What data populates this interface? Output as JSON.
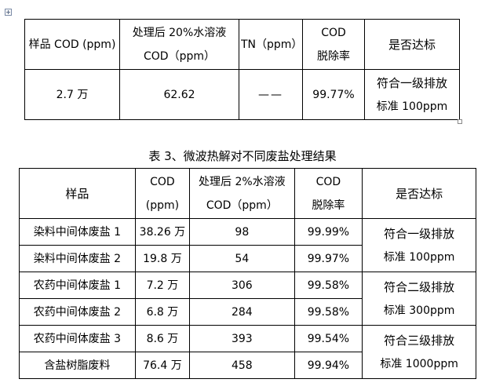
{
  "table1": {
    "headers": {
      "sample": "样品 COD (ppm)",
      "treated_line1": "处理后 20%水溶液",
      "treated_line2": "COD（ppm）",
      "tn": "TN（ppm）",
      "removal_line1": "COD",
      "removal_line2": "脱除率",
      "standard": "是否达标"
    },
    "row": {
      "sample": "2.7 万",
      "treated": "62.62",
      "tn": "——",
      "removal": "99.77%",
      "standard_line1": "符合一级排放",
      "standard_line2": "标准 100ppm"
    }
  },
  "caption": "表 3、微波热解对不同废盐处理结果",
  "table2": {
    "headers": {
      "sample": "样品",
      "cod_line1": "COD",
      "cod_line2": "(ppm)",
      "treated_line1": "处理后 2%水溶液",
      "treated_line2": "COD（ppm）",
      "removal_line1": "COD",
      "removal_line2": "脱除率",
      "standard": "是否达标"
    },
    "rows": [
      {
        "sample": "染料中间体废盐 1",
        "cod": "38.26 万",
        "treated": "98",
        "removal": "99.99%"
      },
      {
        "sample": "染料中间体废盐 2",
        "cod": "19.8 万",
        "treated": "54",
        "removal": "99.97%"
      },
      {
        "sample": "农药中间体废盐 1",
        "cod": "7.2 万",
        "treated": "306",
        "removal": "99.58%"
      },
      {
        "sample": "农药中间体废盐 2",
        "cod": "6.8 万",
        "treated": "284",
        "removal": "99.58%"
      },
      {
        "sample": "农药中间体废盐 3",
        "cod": "8.6 万",
        "treated": "393",
        "removal": "99.54%"
      },
      {
        "sample": "含盐树脂废料",
        "cod": "76.4 万",
        "treated": "458",
        "removal": "99.94%"
      }
    ],
    "standards": [
      {
        "line1": "符合一级排放",
        "line2": "标准 100ppm"
      },
      {
        "line1": "符合二级排放",
        "line2": "标准 300ppm"
      },
      {
        "line1": "符合三级排放",
        "line2": "标准 1000ppm"
      }
    ]
  }
}
